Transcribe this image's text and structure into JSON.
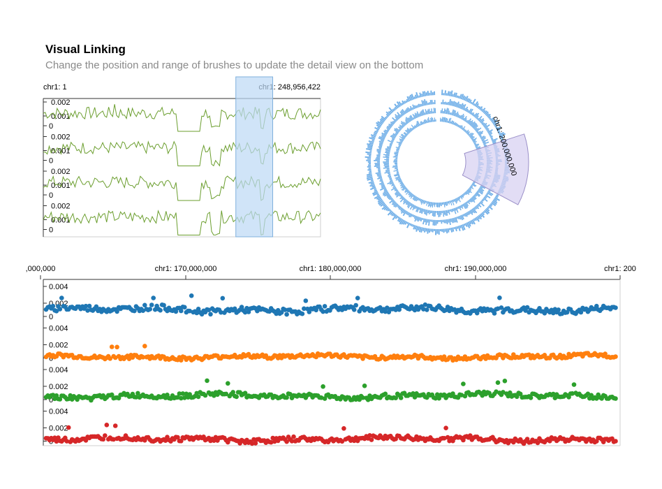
{
  "header": {
    "title": "Visual Linking",
    "subtitle": "Change the position and range of brushes to update the detail view on the bottom"
  },
  "colors": {
    "overview_line": "#6b9e2e",
    "brush_fill": "#bcd9f5",
    "brush_stroke": "#7fb0dd",
    "circular_bars": "#72b0e8",
    "circular_brush_fill": "#d8d2f2",
    "circular_brush_stroke": "#9a8fc8",
    "detail_series": [
      "#1f77b4",
      "#ff7f0e",
      "#2ca02c",
      "#d62728"
    ],
    "axis": "#333333"
  },
  "overview": {
    "start_label": "chr1: 1",
    "end_label": "chr1: 248,956,422",
    "track_ticks": [
      "0.002",
      "0.001",
      "0"
    ],
    "track_count": 4,
    "brush_range_fraction": [
      0.692,
      0.825
    ]
  },
  "circular": {
    "label": "chr1: 200,000,000",
    "ring_count": 4,
    "gap_label": "",
    "brush_angle_range_deg": [
      72,
      118
    ]
  },
  "chart_data": [
    {
      "type": "line",
      "title": "",
      "x_range": [
        1,
        248956422
      ],
      "y_range": [
        0,
        0.0025
      ],
      "series_count": 4,
      "note_visible_ticks": [
        "0.002",
        "0.001",
        "0"
      ]
    },
    {
      "type": "scatter",
      "title": "",
      "x_range": [
        160000000,
        200000000
      ],
      "x_tick_labels": [
        ",000,000",
        "chr1: 170,000,000",
        "chr1: 180,000,000",
        "chr1: 190,000,000",
        "chr1: 200"
      ],
      "y_tick_labels": [
        "0.004",
        "0.002",
        "0"
      ],
      "y_range": [
        0,
        0.0045
      ],
      "series": [
        {
          "baseline": 0.0012,
          "amplitude": 0.0006
        },
        {
          "baseline": 0.0005,
          "amplitude": 0.0004
        },
        {
          "baseline": 0.0008,
          "amplitude": 0.0005
        },
        {
          "baseline": 0.0006,
          "amplitude": 0.0005
        }
      ]
    }
  ]
}
